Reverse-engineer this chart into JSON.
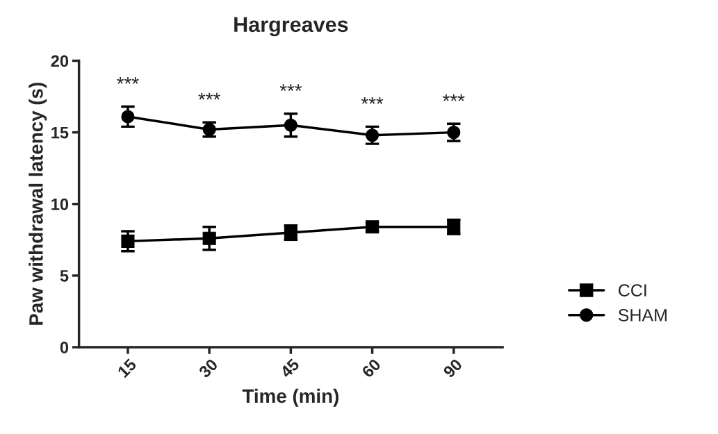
{
  "chart_data": {
    "type": "line",
    "title": "Hargreaves",
    "xlabel": "Time (min)",
    "ylabel": "Paw withdrawal latency (s)",
    "categories": [
      "15",
      "30",
      "45",
      "60",
      "90"
    ],
    "series": [
      {
        "name": "CCI",
        "color": "#000000",
        "marker": "square",
        "values": [
          7.4,
          7.6,
          8.0,
          8.4,
          8.4
        ],
        "errors": [
          0.7,
          0.8,
          0.5,
          0.3,
          0.5
        ]
      },
      {
        "name": "SHAM",
        "color": "#000000",
        "marker": "circle",
        "values": [
          16.1,
          15.2,
          15.5,
          14.8,
          15.0
        ],
        "errors": [
          0.7,
          0.5,
          0.8,
          0.6,
          0.6
        ]
      }
    ],
    "ylim": [
      0,
      20
    ],
    "yticks": [
      0,
      5,
      10,
      15,
      20
    ],
    "grid": false,
    "legend": "right",
    "annotations": [
      "***",
      "***",
      "***",
      "***",
      "***"
    ]
  }
}
